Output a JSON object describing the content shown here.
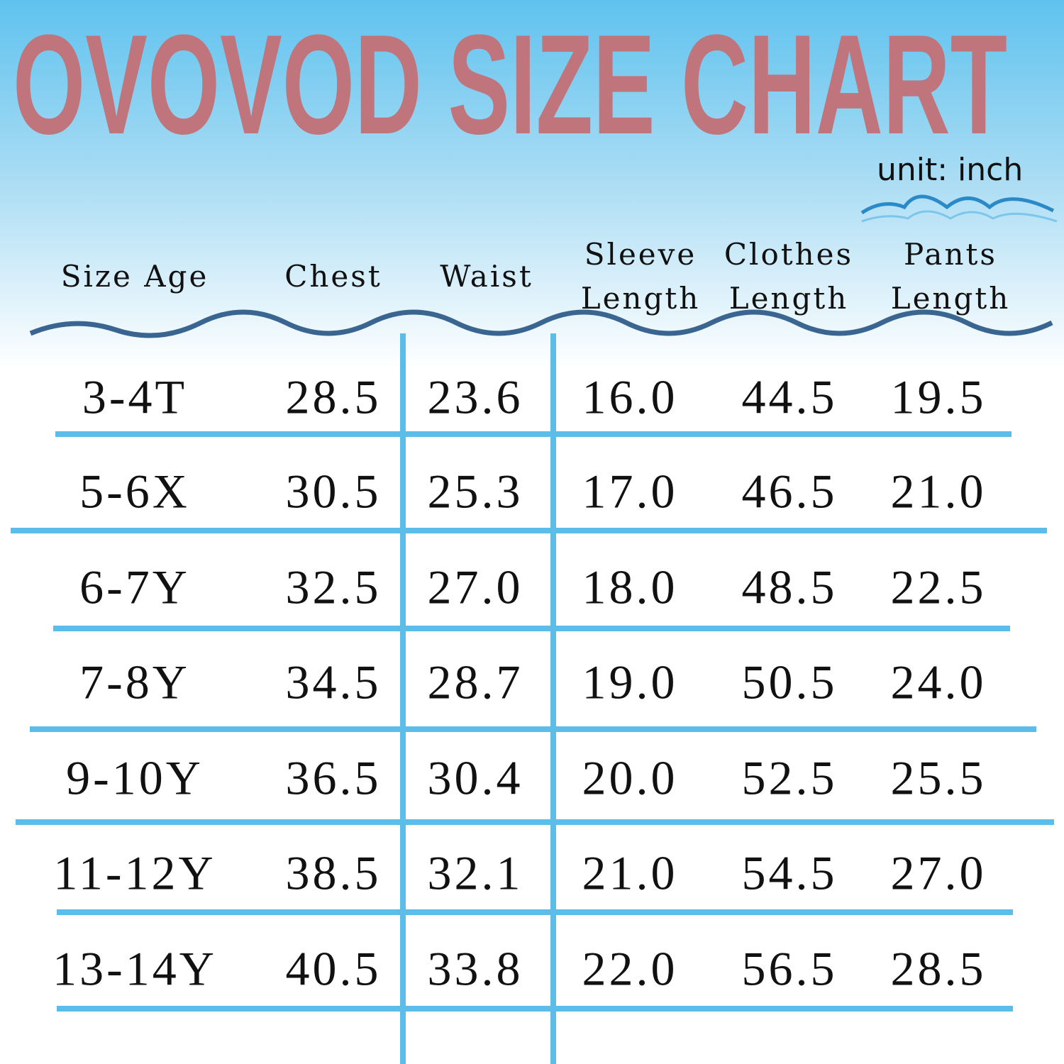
{
  "header": {
    "title": "OVOVOD SIZE CHART",
    "unit": "unit: inch"
  },
  "table": {
    "columns": [
      "Size Age",
      "Chest",
      "Waist",
      "Sleeve Length",
      "Clothes Length",
      "Pants Length"
    ],
    "rows": [
      [
        "3-4T",
        "28.5",
        "23.6",
        "16.0",
        "44.5",
        "19.5"
      ],
      [
        "5-6X",
        "30.5",
        "25.3",
        "17.0",
        "46.5",
        "21.0"
      ],
      [
        "6-7Y",
        "32.5",
        "27.0",
        "18.0",
        "48.5",
        "22.5"
      ],
      [
        "7-8Y",
        "34.5",
        "28.7",
        "19.0",
        "50.5",
        "24.0"
      ],
      [
        "9-10Y",
        "36.5",
        "30.4",
        "20.0",
        "52.5",
        "25.5"
      ],
      [
        "11-12Y",
        "38.5",
        "32.1",
        "21.0",
        "54.5",
        "27.0"
      ],
      [
        "13-14Y",
        "40.5",
        "33.8",
        "22.0",
        "56.5",
        "28.5"
      ]
    ]
  }
}
